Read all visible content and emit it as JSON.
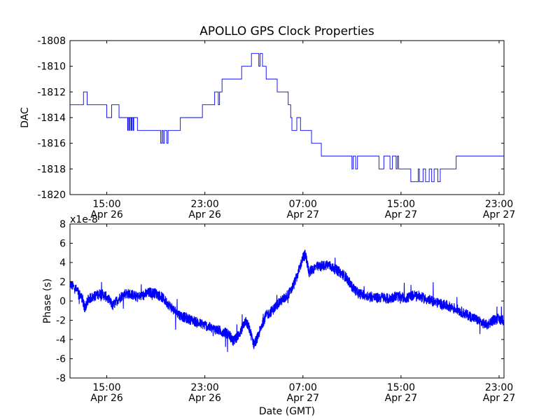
{
  "figure": {
    "title": "APOLLO GPS Clock Properties"
  },
  "chart_data": [
    {
      "type": "line",
      "title": "APOLLO GPS Clock Properties",
      "xlabel": "",
      "ylabel": "DAC",
      "ylim": [
        -1820,
        -1808
      ],
      "y_ticks": [
        -1820,
        -1818,
        -1816,
        -1814,
        -1812,
        -1810,
        -1808
      ],
      "x_ticks": [
        {
          "hours": 15,
          "time": "15:00",
          "date": "Apr 26"
        },
        {
          "hours": 23,
          "time": "23:00",
          "date": "Apr 26"
        },
        {
          "hours": 31,
          "time": "07:00",
          "date": "Apr 27"
        },
        {
          "hours": 39,
          "time": "15:00",
          "date": "Apr 27"
        },
        {
          "hours": 47,
          "time": "23:00",
          "date": "Apr 27"
        }
      ],
      "xlim_hours": [
        12,
        47.4
      ],
      "step": "post",
      "color": "#0000ff",
      "grid": false,
      "series": [
        {
          "points": [
            [
              12.0,
              -1813
            ],
            [
              13.1,
              -1813
            ],
            [
              13.1,
              -1812
            ],
            [
              13.4,
              -1812
            ],
            [
              13.4,
              -1813
            ],
            [
              15.0,
              -1813
            ],
            [
              15.0,
              -1814
            ],
            [
              15.4,
              -1814
            ],
            [
              15.4,
              -1813
            ],
            [
              16.0,
              -1813
            ],
            [
              16.0,
              -1814
            ],
            [
              16.7,
              -1814
            ],
            [
              16.7,
              -1815
            ],
            [
              16.75,
              -1815
            ],
            [
              16.75,
              -1814
            ],
            [
              16.85,
              -1814
            ],
            [
              16.85,
              -1815
            ],
            [
              16.9,
              -1815
            ],
            [
              16.9,
              -1814
            ],
            [
              17.0,
              -1814
            ],
            [
              17.0,
              -1815
            ],
            [
              17.05,
              -1815
            ],
            [
              17.05,
              -1814
            ],
            [
              17.15,
              -1814
            ],
            [
              17.15,
              -1815
            ],
            [
              17.2,
              -1815
            ],
            [
              17.2,
              -1814
            ],
            [
              17.5,
              -1814
            ],
            [
              17.5,
              -1815
            ],
            [
              19.4,
              -1815
            ],
            [
              19.4,
              -1816
            ],
            [
              19.5,
              -1816
            ],
            [
              19.5,
              -1815
            ],
            [
              19.6,
              -1815
            ],
            [
              19.6,
              -1816
            ],
            [
              19.7,
              -1816
            ],
            [
              19.7,
              -1815
            ],
            [
              19.9,
              -1815
            ],
            [
              19.9,
              -1816
            ],
            [
              20.0,
              -1816
            ],
            [
              20.0,
              -1815
            ],
            [
              21.0,
              -1815
            ],
            [
              21.0,
              -1814
            ],
            [
              22.8,
              -1814
            ],
            [
              22.8,
              -1813
            ],
            [
              23.8,
              -1813
            ],
            [
              23.8,
              -1812
            ],
            [
              24.1,
              -1812
            ],
            [
              24.1,
              -1813
            ],
            [
              24.2,
              -1813
            ],
            [
              24.2,
              -1812
            ],
            [
              24.4,
              -1812
            ],
            [
              24.4,
              -1811
            ],
            [
              26.0,
              -1811
            ],
            [
              26.0,
              -1810
            ],
            [
              26.8,
              -1810
            ],
            [
              26.8,
              -1809
            ],
            [
              27.4,
              -1809
            ],
            [
              27.4,
              -1810
            ],
            [
              27.5,
              -1810
            ],
            [
              27.5,
              -1809
            ],
            [
              27.7,
              -1809
            ],
            [
              27.7,
              -1810
            ],
            [
              28.0,
              -1810
            ],
            [
              28.0,
              -1811
            ],
            [
              28.9,
              -1811
            ],
            [
              28.9,
              -1812
            ],
            [
              29.8,
              -1812
            ],
            [
              29.8,
              -1813
            ],
            [
              30.0,
              -1813
            ],
            [
              30.0,
              -1814
            ],
            [
              30.1,
              -1814
            ],
            [
              30.1,
              -1815
            ],
            [
              30.5,
              -1815
            ],
            [
              30.5,
              -1814
            ],
            [
              30.8,
              -1814
            ],
            [
              30.8,
              -1815
            ],
            [
              31.7,
              -1815
            ],
            [
              31.7,
              -1816
            ],
            [
              32.5,
              -1816
            ],
            [
              32.5,
              -1817
            ],
            [
              35.0,
              -1817
            ],
            [
              35.0,
              -1818
            ],
            [
              35.1,
              -1818
            ],
            [
              35.1,
              -1817
            ],
            [
              35.3,
              -1817
            ],
            [
              35.3,
              -1818
            ],
            [
              35.45,
              -1818
            ],
            [
              35.45,
              -1817
            ],
            [
              37.2,
              -1817
            ],
            [
              37.2,
              -1818
            ],
            [
              37.6,
              -1818
            ],
            [
              37.6,
              -1817
            ],
            [
              38.1,
              -1817
            ],
            [
              38.1,
              -1818
            ],
            [
              38.3,
              -1818
            ],
            [
              38.3,
              -1817
            ],
            [
              38.6,
              -1817
            ],
            [
              38.6,
              -1818
            ],
            [
              38.7,
              -1818
            ],
            [
              38.7,
              -1817
            ],
            [
              38.8,
              -1817
            ],
            [
              38.8,
              -1818
            ],
            [
              39.8,
              -1818
            ],
            [
              39.8,
              -1819
            ],
            [
              40.4,
              -1819
            ],
            [
              40.4,
              -1818
            ],
            [
              40.5,
              -1818
            ],
            [
              40.5,
              -1819
            ],
            [
              40.8,
              -1819
            ],
            [
              40.8,
              -1818
            ],
            [
              41.0,
              -1818
            ],
            [
              41.0,
              -1819
            ],
            [
              41.3,
              -1819
            ],
            [
              41.3,
              -1818
            ],
            [
              41.5,
              -1818
            ],
            [
              41.5,
              -1819
            ],
            [
              41.7,
              -1819
            ],
            [
              41.7,
              -1818
            ],
            [
              42.0,
              -1818
            ],
            [
              42.0,
              -1819
            ],
            [
              42.2,
              -1819
            ],
            [
              42.2,
              -1818
            ],
            [
              43.5,
              -1818
            ],
            [
              43.5,
              -1817
            ],
            [
              47.4,
              -1817
            ]
          ]
        }
      ]
    },
    {
      "type": "line",
      "title": "",
      "xlabel": "Date (GMT)",
      "ylabel": "Phase (s)",
      "y_scale_label": "x1e-8",
      "ylim": [
        -8,
        8
      ],
      "y_ticks": [
        -8,
        -6,
        -4,
        -2,
        0,
        2,
        4,
        6,
        8
      ],
      "x_ticks": [
        {
          "hours": 15,
          "time": "15:00",
          "date": "Apr 26"
        },
        {
          "hours": 23,
          "time": "23:00",
          "date": "Apr 26"
        },
        {
          "hours": 31,
          "time": "07:00",
          "date": "Apr 27"
        },
        {
          "hours": 39,
          "time": "15:00",
          "date": "Apr 27"
        },
        {
          "hours": 47,
          "time": "23:00",
          "date": "Apr 27"
        }
      ],
      "xlim_hours": [
        12,
        47.4
      ],
      "color": "#0000ff",
      "grid": false,
      "series": [
        {
          "points": [
            [
              12.0,
              1.8
            ],
            [
              12.5,
              1.2
            ],
            [
              13.0,
              0.3
            ],
            [
              13.2,
              -0.8
            ],
            [
              13.5,
              0.2
            ],
            [
              14.0,
              0.5
            ],
            [
              14.5,
              0.8
            ],
            [
              15.0,
              0.4
            ],
            [
              15.5,
              -0.5
            ],
            [
              16.0,
              0.3
            ],
            [
              16.5,
              0.8
            ],
            [
              17.0,
              0.7
            ],
            [
              17.5,
              0.4
            ],
            [
              18.0,
              0.6
            ],
            [
              18.5,
              0.9
            ],
            [
              19.0,
              0.8
            ],
            [
              19.5,
              0.4
            ],
            [
              20.0,
              -0.3
            ],
            [
              20.5,
              -1.0
            ],
            [
              21.0,
              -1.5
            ],
            [
              21.5,
              -1.8
            ],
            [
              22.0,
              -2.0
            ],
            [
              22.5,
              -2.3
            ],
            [
              23.0,
              -2.5
            ],
            [
              23.5,
              -2.8
            ],
            [
              24.0,
              -3.0
            ],
            [
              24.5,
              -3.2
            ],
            [
              25.0,
              -3.5
            ],
            [
              25.3,
              -4.2
            ],
            [
              25.6,
              -3.8
            ],
            [
              26.0,
              -3.0
            ],
            [
              26.3,
              -2.0
            ],
            [
              26.6,
              -2.8
            ],
            [
              27.0,
              -4.5
            ],
            [
              27.3,
              -3.8
            ],
            [
              27.7,
              -2.3
            ],
            [
              28.0,
              -1.5
            ],
            [
              28.5,
              -1.0
            ],
            [
              29.0,
              -0.2
            ],
            [
              29.5,
              0.3
            ],
            [
              30.0,
              1.0
            ],
            [
              30.5,
              2.5
            ],
            [
              31.0,
              4.5
            ],
            [
              31.2,
              4.8
            ],
            [
              31.5,
              3.0
            ],
            [
              32.0,
              3.5
            ],
            [
              32.5,
              3.6
            ],
            [
              33.0,
              3.8
            ],
            [
              33.5,
              3.4
            ],
            [
              34.0,
              3.0
            ],
            [
              34.5,
              2.5
            ],
            [
              35.0,
              1.5
            ],
            [
              35.5,
              0.8
            ],
            [
              36.0,
              0.6
            ],
            [
              36.5,
              0.5
            ],
            [
              37.0,
              0.3
            ],
            [
              37.5,
              0.4
            ],
            [
              38.0,
              0.2
            ],
            [
              38.5,
              0.5
            ],
            [
              39.0,
              0.4
            ],
            [
              39.5,
              0.3
            ],
            [
              40.0,
              0.6
            ],
            [
              40.5,
              0.5
            ],
            [
              41.0,
              0.2
            ],
            [
              41.5,
              0.0
            ],
            [
              42.0,
              -0.2
            ],
            [
              42.5,
              -0.4
            ],
            [
              43.0,
              -0.6
            ],
            [
              43.5,
              -0.8
            ],
            [
              44.0,
              -1.2
            ],
            [
              44.5,
              -1.5
            ],
            [
              45.0,
              -1.8
            ],
            [
              45.5,
              -2.2
            ],
            [
              46.0,
              -2.5
            ],
            [
              46.5,
              -2.0
            ],
            [
              47.0,
              -1.9
            ],
            [
              47.4,
              -2.0
            ]
          ]
        }
      ]
    }
  ]
}
